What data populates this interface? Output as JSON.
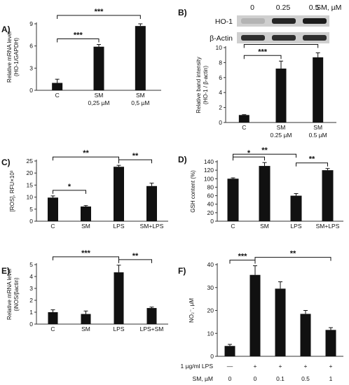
{
  "colors": {
    "bar": "#111111",
    "axis": "#333333",
    "blot_bg": "#cfcfcf",
    "band": "#1c1c1c"
  },
  "chart_data": [
    {
      "panel": "A)",
      "type": "bar",
      "ylabel": "Relative mRNA level (HO-1/GAPDH)",
      "categories": [
        [
          "C"
        ],
        [
          "SM",
          "0,25 µM"
        ],
        [
          "SM",
          "0,5 µM"
        ]
      ],
      "values": [
        1.0,
        5.9,
        8.7
      ],
      "errors": [
        0.5,
        0.3,
        0.3
      ],
      "ylim": [
        0,
        9
      ],
      "yticks": [
        0,
        3,
        6,
        9
      ],
      "significance": [
        {
          "from": 0,
          "to": 1,
          "label": "***"
        },
        {
          "from": 0,
          "to": 2,
          "label": "***"
        }
      ]
    },
    {
      "panel": "B)",
      "type": "bar",
      "ylabel": "Relative band intensity (HO-1 / β-actin)",
      "categories": [
        [
          "C"
        ],
        [
          "SM",
          "0.25 µM"
        ],
        [
          "SM",
          "0.5 µM"
        ]
      ],
      "values": [
        1.0,
        7.2,
        8.7
      ],
      "errors": [
        0.05,
        1.0,
        0.6
      ],
      "ylim": [
        0,
        10
      ],
      "yticks": [
        0,
        2,
        4,
        6,
        8,
        10
      ],
      "significance": [
        {
          "from": 0,
          "to": 1,
          "label": "***"
        },
        {
          "from": 0,
          "to": 2,
          "label": "***"
        }
      ],
      "blot": {
        "concentrations": [
          "0",
          "0.25",
          "0.5"
        ],
        "conc_unit": "SM, µM",
        "rows": [
          "HO-1",
          "β-Actin"
        ],
        "ho1_intensity": [
          0.15,
          0.95,
          1.0
        ],
        "actin_intensity": [
          0.9,
          0.9,
          0.9
        ]
      }
    },
    {
      "panel": "C)",
      "type": "bar",
      "ylabel": "[ROS], RFU×10³",
      "categories": [
        [
          "C"
        ],
        [
          "SM"
        ],
        [
          "LPS"
        ],
        [
          "SM+LPS"
        ]
      ],
      "values": [
        9.8,
        6.1,
        22.6,
        14.6
      ],
      "errors": [
        0.7,
        0.4,
        0.6,
        1.2
      ],
      "ylim": [
        0,
        25
      ],
      "yticks": [
        0,
        5,
        10,
        15,
        20,
        25
      ],
      "significance": [
        {
          "from": 0,
          "to": 1,
          "label": "*"
        },
        {
          "from": 0,
          "to": 2,
          "label": "**"
        },
        {
          "from": 2,
          "to": 3,
          "label": "**"
        }
      ]
    },
    {
      "panel": "D)",
      "type": "bar",
      "ylabel": "GSH content (%)",
      "categories": [
        [
          "C"
        ],
        [
          "SM"
        ],
        [
          "LPS"
        ],
        [
          "SM+LPS"
        ]
      ],
      "values": [
        100,
        130,
        60,
        120
      ],
      "errors": [
        2,
        8,
        5,
        4
      ],
      "ylim": [
        0,
        140
      ],
      "yticks": [
        0,
        20,
        40,
        60,
        80,
        100,
        120,
        140
      ],
      "significance": [
        {
          "from": 0,
          "to": 1,
          "label": "*"
        },
        {
          "from": 0,
          "to": 2,
          "label": "**"
        },
        {
          "from": 2,
          "to": 3,
          "label": "**"
        }
      ]
    },
    {
      "panel": "E)",
      "type": "bar",
      "ylabel": "Relative mRNA level (iNOS/βactin)",
      "categories": [
        [
          "C"
        ],
        [
          "SM"
        ],
        [
          "LPS"
        ],
        [
          "LPS+SM"
        ]
      ],
      "values": [
        1.0,
        0.85,
        4.35,
        1.35
      ],
      "errors": [
        0.2,
        0.25,
        0.6,
        0.08
      ],
      "ylim": [
        0,
        5
      ],
      "yticks": [
        0,
        1,
        2,
        3,
        4,
        5
      ],
      "significance": [
        {
          "from": 0,
          "to": 2,
          "label": "***"
        },
        {
          "from": 2,
          "to": 3,
          "label": "**"
        }
      ]
    },
    {
      "panel": "F)",
      "type": "bar",
      "ylabel": "NO₂⁻, µM",
      "categories": [
        [],
        [],
        [],
        [],
        []
      ],
      "values": [
        4.5,
        35.5,
        29.5,
        18.5,
        11.5
      ],
      "errors": [
        0.7,
        4.0,
        3.0,
        1.5,
        1.0
      ],
      "ylim": [
        0,
        40
      ],
      "yticks": [
        0,
        10,
        20,
        30,
        40
      ],
      "significance": [
        {
          "from": 0,
          "to": 1,
          "label": "***"
        },
        {
          "from": 1,
          "to": 4,
          "label": "**"
        }
      ],
      "treatment_rows": [
        {
          "label": "1 µg/ml LPS",
          "values": [
            "—",
            "+",
            "+",
            "+",
            "+"
          ]
        },
        {
          "label": "SM, µM",
          "values": [
            "0",
            "0",
            "0.1",
            "0.5",
            "1"
          ]
        }
      ]
    }
  ]
}
